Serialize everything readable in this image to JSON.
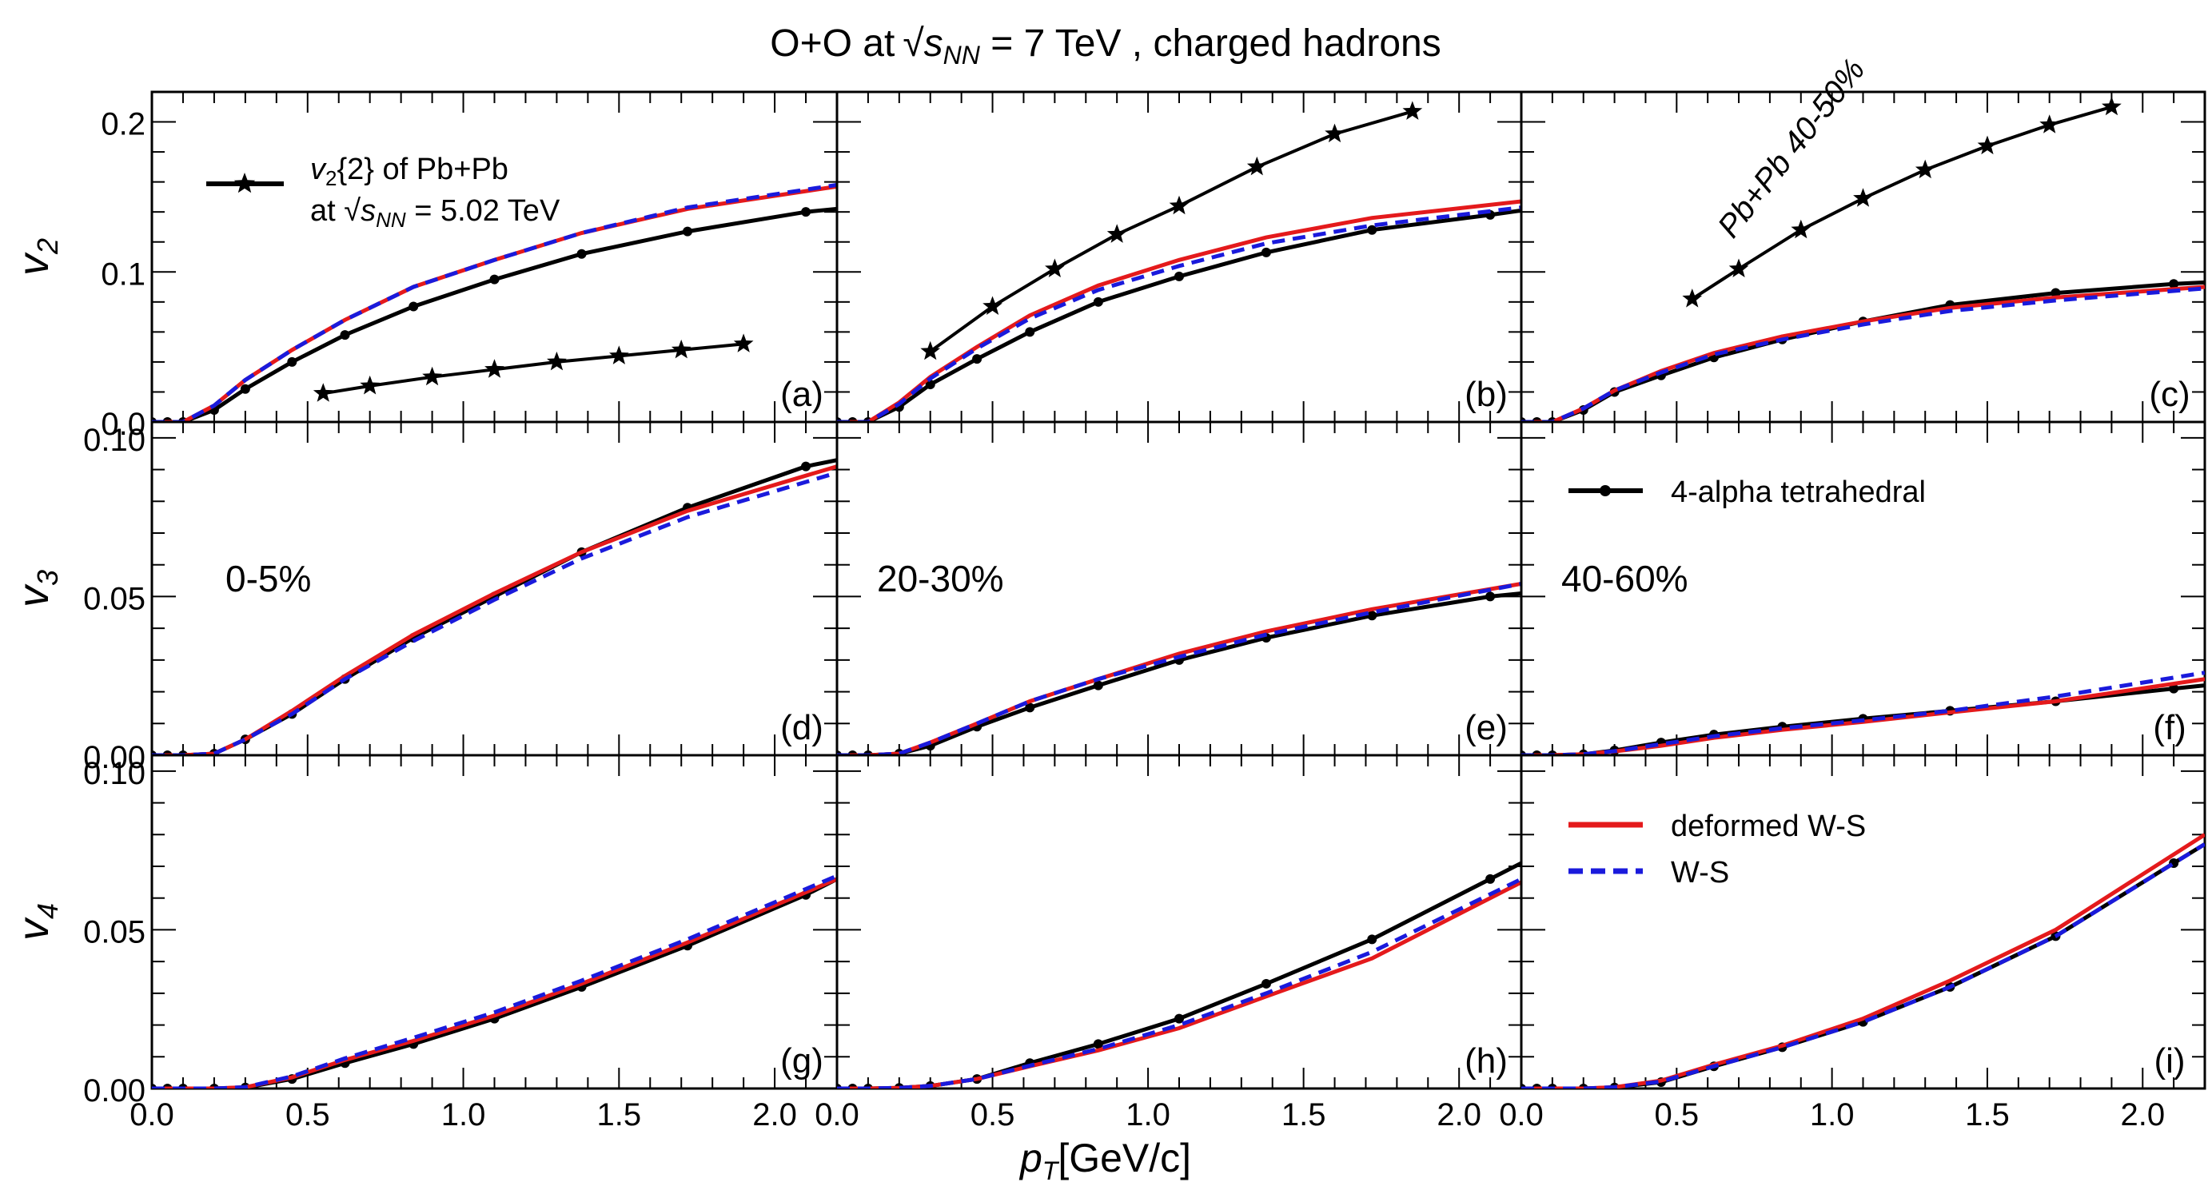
{
  "figure": {
    "title": "O+O at √s_NN = 7 TeV , charged hadrons",
    "title_parts": {
      "pre": "O+O at",
      "s": "s",
      "sub": "NN",
      "post": " = 7 TeV , charged hadrons"
    },
    "xlabel": {
      "p": "p",
      "sub": "T",
      "rest": "[GeV/c]"
    }
  },
  "legend": {
    "pbpb": {
      "v": "v",
      "sub": "2",
      "line1": "{2} of Pb+Pb",
      "at": "at",
      "s": "s",
      "ssub": "NN",
      "line2post": " = 5.02 TeV"
    },
    "tetra": "4-alpha tetrahedral",
    "deformed": "deformed W-S",
    "ws": "W-S"
  },
  "colors": {
    "tetra": "#000000",
    "deformed": "#e41a1c",
    "ws": "#1a1adc",
    "pbpb": "#000000"
  },
  "chart_data": [
    {
      "type": "line",
      "panel": "(a)",
      "row_label": "v2",
      "centrality": "0-5%",
      "xlim": [
        0,
        2.2
      ],
      "ylim": [
        0,
        0.22
      ],
      "yticks": [
        "0.0",
        "0.1",
        "0.2"
      ],
      "ytick_values": [
        0,
        0.1,
        0.2
      ],
      "xticks": [
        "0.0",
        "0.5",
        "1.0",
        "1.5",
        "2.0"
      ],
      "series": [
        {
          "name": "4-alpha tetrahedral",
          "x": [
            0,
            0.05,
            0.1,
            0.2,
            0.3,
            0.45,
            0.62,
            0.84,
            1.1,
            1.38,
            1.72,
            2.1,
            2.2
          ],
          "y": [
            0,
            0,
            0,
            0.008,
            0.022,
            0.04,
            0.058,
            0.077,
            0.095,
            0.112,
            0.127,
            0.14,
            0.142
          ]
        },
        {
          "name": "deformed W-S",
          "x": [
            0,
            0.1,
            0.2,
            0.3,
            0.45,
            0.62,
            0.84,
            1.1,
            1.38,
            1.72,
            2.2
          ],
          "y": [
            0,
            0,
            0.011,
            0.028,
            0.048,
            0.068,
            0.09,
            0.108,
            0.126,
            0.142,
            0.157
          ]
        },
        {
          "name": "W-S",
          "x": [
            0,
            0.1,
            0.2,
            0.3,
            0.45,
            0.62,
            0.84,
            1.1,
            1.38,
            1.72,
            2.2
          ],
          "y": [
            0,
            0,
            0.011,
            0.028,
            0.048,
            0.068,
            0.09,
            0.108,
            0.126,
            0.143,
            0.158
          ]
        },
        {
          "name": "v2{2} of Pb+Pb",
          "x": [
            0.55,
            0.7,
            0.9,
            1.1,
            1.3,
            1.5,
            1.7,
            1.9
          ],
          "y": [
            0.019,
            0.024,
            0.03,
            0.035,
            0.04,
            0.044,
            0.048,
            0.052
          ]
        }
      ]
    },
    {
      "type": "line",
      "panel": "(b)",
      "row_label": "v2",
      "centrality": "20-30%",
      "xlim": [
        0,
        2.2
      ],
      "ylim": [
        0,
        0.22
      ],
      "ytick_values": [
        0,
        0.1,
        0.2
      ],
      "xticks": [
        "0.0",
        "0.5",
        "1.0",
        "1.5",
        "2.0"
      ],
      "series": [
        {
          "name": "4-alpha tetrahedral",
          "x": [
            0,
            0.05,
            0.1,
            0.2,
            0.3,
            0.45,
            0.62,
            0.84,
            1.1,
            1.38,
            1.72,
            2.1,
            2.2
          ],
          "y": [
            0,
            0,
            0,
            0.01,
            0.025,
            0.042,
            0.06,
            0.08,
            0.097,
            0.113,
            0.128,
            0.138,
            0.141
          ]
        },
        {
          "name": "deformed W-S",
          "x": [
            0,
            0.1,
            0.2,
            0.3,
            0.45,
            0.62,
            0.84,
            1.1,
            1.38,
            1.72,
            2.2
          ],
          "y": [
            0,
            0,
            0.013,
            0.03,
            0.05,
            0.071,
            0.091,
            0.108,
            0.123,
            0.136,
            0.147
          ]
        },
        {
          "name": "W-S",
          "x": [
            0,
            0.1,
            0.2,
            0.3,
            0.45,
            0.62,
            0.84,
            1.1,
            1.38,
            1.72,
            2.2
          ],
          "y": [
            0,
            0,
            0.012,
            0.029,
            0.049,
            0.069,
            0.088,
            0.104,
            0.119,
            0.131,
            0.143
          ]
        },
        {
          "name": "v2{2} of Pb+Pb",
          "x": [
            0.3,
            0.5,
            0.7,
            0.9,
            1.1,
            1.35,
            1.6,
            1.85
          ],
          "y": [
            0.047,
            0.077,
            0.102,
            0.125,
            0.144,
            0.17,
            0.192,
            0.207
          ]
        }
      ]
    },
    {
      "type": "line",
      "panel": "(c)",
      "row_label": "v2",
      "centrality": "40-60%",
      "annotation": "Pb+Pb 40-50%",
      "xlim": [
        0,
        2.2
      ],
      "ylim": [
        0,
        0.22
      ],
      "ytick_values": [
        0,
        0.1,
        0.2
      ],
      "xticks": [
        "0.0",
        "0.5",
        "1.0",
        "1.5",
        "2.0"
      ],
      "series": [
        {
          "name": "4-alpha tetrahedral",
          "x": [
            0,
            0.05,
            0.1,
            0.2,
            0.3,
            0.45,
            0.62,
            0.84,
            1.1,
            1.38,
            1.72,
            2.1,
            2.2
          ],
          "y": [
            0,
            0,
            0,
            0.008,
            0.02,
            0.031,
            0.043,
            0.055,
            0.067,
            0.078,
            0.086,
            0.092,
            0.093
          ]
        },
        {
          "name": "deformed W-S",
          "x": [
            0,
            0.1,
            0.2,
            0.3,
            0.45,
            0.62,
            0.84,
            1.1,
            1.38,
            1.72,
            2.2
          ],
          "y": [
            0,
            0,
            0.009,
            0.021,
            0.034,
            0.046,
            0.057,
            0.067,
            0.076,
            0.083,
            0.09
          ]
        },
        {
          "name": "W-S",
          "x": [
            0,
            0.1,
            0.2,
            0.3,
            0.45,
            0.62,
            0.84,
            1.1,
            1.38,
            1.72,
            2.2
          ],
          "y": [
            0,
            0,
            0.009,
            0.021,
            0.033,
            0.045,
            0.055,
            0.065,
            0.074,
            0.081,
            0.089
          ]
        },
        {
          "name": "v2{2} of Pb+Pb",
          "x": [
            0.55,
            0.7,
            0.9,
            1.1,
            1.3,
            1.5,
            1.7,
            1.9
          ],
          "y": [
            0.082,
            0.102,
            0.128,
            0.149,
            0.168,
            0.184,
            0.198,
            0.21
          ]
        }
      ]
    },
    {
      "type": "line",
      "panel": "(d)",
      "row_label": "v3",
      "centrality": "0-5%",
      "xlim": [
        0,
        2.2
      ],
      "ylim": [
        0,
        0.105
      ],
      "yticks": [
        "0.00",
        "0.05",
        "0.10"
      ],
      "ytick_values": [
        0,
        0.05,
        0.1
      ],
      "xticks": [
        "0.0",
        "0.5",
        "1.0",
        "1.5",
        "2.0"
      ],
      "series": [
        {
          "name": "4-alpha tetrahedral",
          "x": [
            0,
            0.05,
            0.1,
            0.2,
            0.3,
            0.45,
            0.62,
            0.84,
            1.1,
            1.38,
            1.72,
            2.1,
            2.2
          ],
          "y": [
            0,
            0,
            0,
            0.0005,
            0.005,
            0.013,
            0.024,
            0.037,
            0.05,
            0.064,
            0.078,
            0.091,
            0.093
          ]
        },
        {
          "name": "deformed W-S",
          "x": [
            0,
            0.1,
            0.2,
            0.3,
            0.45,
            0.62,
            0.84,
            1.1,
            1.38,
            1.72,
            2.2
          ],
          "y": [
            0,
            0,
            0.0005,
            0.005,
            0.014,
            0.025,
            0.038,
            0.051,
            0.064,
            0.077,
            0.091
          ]
        },
        {
          "name": "W-S",
          "x": [
            0,
            0.1,
            0.2,
            0.3,
            0.45,
            0.62,
            0.84,
            1.1,
            1.38,
            1.72,
            2.2
          ],
          "y": [
            0,
            0,
            0.0005,
            0.005,
            0.013,
            0.024,
            0.036,
            0.049,
            0.062,
            0.075,
            0.089
          ]
        }
      ]
    },
    {
      "type": "line",
      "panel": "(e)",
      "row_label": "v3",
      "centrality": "20-30%",
      "xlim": [
        0,
        2.2
      ],
      "ylim": [
        0,
        0.105
      ],
      "ytick_values": [
        0,
        0.05,
        0.1
      ],
      "xticks": [
        "0.0",
        "0.5",
        "1.0",
        "1.5",
        "2.0"
      ],
      "series": [
        {
          "name": "4-alpha tetrahedral",
          "x": [
            0,
            0.05,
            0.1,
            0.2,
            0.3,
            0.45,
            0.62,
            0.84,
            1.1,
            1.38,
            1.72,
            2.1,
            2.2
          ],
          "y": [
            0,
            0,
            0,
            0.0005,
            0.003,
            0.009,
            0.015,
            0.022,
            0.03,
            0.037,
            0.044,
            0.05,
            0.051
          ]
        },
        {
          "name": "deformed W-S",
          "x": [
            0,
            0.1,
            0.2,
            0.3,
            0.45,
            0.62,
            0.84,
            1.1,
            1.38,
            1.72,
            2.2
          ],
          "y": [
            0,
            0,
            0.0005,
            0.004,
            0.01,
            0.017,
            0.024,
            0.032,
            0.039,
            0.046,
            0.054
          ]
        },
        {
          "name": "W-S",
          "x": [
            0,
            0.1,
            0.2,
            0.3,
            0.45,
            0.62,
            0.84,
            1.1,
            1.38,
            1.72,
            2.2
          ],
          "y": [
            0,
            0,
            0.0005,
            0.004,
            0.01,
            0.017,
            0.024,
            0.031,
            0.038,
            0.045,
            0.054
          ]
        }
      ]
    },
    {
      "type": "line",
      "panel": "(f)",
      "row_label": "v3",
      "centrality": "40-60%",
      "xlim": [
        0,
        2.2
      ],
      "ylim": [
        0,
        0.105
      ],
      "ytick_values": [
        0,
        0.05,
        0.1
      ],
      "xticks": [
        "0.0",
        "0.5",
        "1.0",
        "1.5",
        "2.0"
      ],
      "series": [
        {
          "name": "4-alpha tetrahedral",
          "x": [
            0,
            0.05,
            0.1,
            0.2,
            0.3,
            0.45,
            0.62,
            0.84,
            1.1,
            1.38,
            1.72,
            2.1,
            2.2
          ],
          "y": [
            0,
            0,
            0,
            0.0003,
            0.0015,
            0.004,
            0.0065,
            0.009,
            0.0115,
            0.014,
            0.017,
            0.021,
            0.022
          ]
        },
        {
          "name": "deformed W-S",
          "x": [
            0,
            0.1,
            0.2,
            0.3,
            0.45,
            0.62,
            0.84,
            1.1,
            1.38,
            1.72,
            2.2
          ],
          "y": [
            0,
            0,
            0.0003,
            0.0012,
            0.003,
            0.0055,
            0.008,
            0.0105,
            0.0135,
            0.017,
            0.024
          ]
        },
        {
          "name": "W-S",
          "x": [
            0,
            0.1,
            0.2,
            0.3,
            0.45,
            0.62,
            0.84,
            1.1,
            1.38,
            1.72,
            2.2
          ],
          "y": [
            0,
            0,
            0.0003,
            0.0013,
            0.0035,
            0.006,
            0.0085,
            0.011,
            0.014,
            0.0185,
            0.026
          ]
        }
      ]
    },
    {
      "type": "line",
      "panel": "(g)",
      "row_label": "v4",
      "centrality": "0-5%",
      "xlim": [
        0,
        2.2
      ],
      "ylim": [
        0,
        0.105
      ],
      "yticks": [
        "0.00",
        "0.05",
        "0.10"
      ],
      "ytick_values": [
        0,
        0.05,
        0.1
      ],
      "xticks": [
        "0.0",
        "0.5",
        "1.0",
        "1.5",
        "2.0"
      ],
      "series": [
        {
          "name": "4-alpha tetrahedral",
          "x": [
            0,
            0.05,
            0.1,
            0.2,
            0.3,
            0.45,
            0.62,
            0.84,
            1.1,
            1.38,
            1.72,
            2.1,
            2.2
          ],
          "y": [
            0,
            0,
            0,
            0,
            0.0003,
            0.003,
            0.008,
            0.014,
            0.022,
            0.032,
            0.045,
            0.061,
            0.066
          ]
        },
        {
          "name": "deformed W-S",
          "x": [
            0,
            0.1,
            0.2,
            0.3,
            0.45,
            0.62,
            0.84,
            1.1,
            1.38,
            1.72,
            2.2
          ],
          "y": [
            0,
            0,
            0,
            0.0004,
            0.0035,
            0.009,
            0.015,
            0.023,
            0.033,
            0.046,
            0.066
          ]
        },
        {
          "name": "W-S",
          "x": [
            0,
            0.1,
            0.2,
            0.3,
            0.45,
            0.62,
            0.84,
            1.1,
            1.38,
            1.72,
            2.2
          ],
          "y": [
            0,
            0,
            0,
            0.0004,
            0.0038,
            0.0095,
            0.016,
            0.024,
            0.034,
            0.047,
            0.067
          ]
        }
      ]
    },
    {
      "type": "line",
      "panel": "(h)",
      "row_label": "v4",
      "centrality": "20-30%",
      "xlim": [
        0,
        2.2
      ],
      "ylim": [
        0,
        0.105
      ],
      "ytick_values": [
        0,
        0.05,
        0.1
      ],
      "xticks": [
        "0.0",
        "0.5",
        "1.0",
        "1.5",
        "2.0"
      ],
      "series": [
        {
          "name": "4-alpha tetrahedral",
          "x": [
            0,
            0.05,
            0.1,
            0.2,
            0.3,
            0.45,
            0.62,
            0.84,
            1.1,
            1.38,
            1.72,
            2.1,
            2.2
          ],
          "y": [
            0,
            0,
            0,
            0.0002,
            0.0008,
            0.003,
            0.008,
            0.014,
            0.022,
            0.033,
            0.047,
            0.066,
            0.071
          ]
        },
        {
          "name": "deformed W-S",
          "x": [
            0,
            0.1,
            0.2,
            0.3,
            0.45,
            0.62,
            0.84,
            1.1,
            1.38,
            1.72,
            2.2
          ],
          "y": [
            0,
            0,
            0.0002,
            0.0008,
            0.003,
            0.007,
            0.012,
            0.019,
            0.029,
            0.041,
            0.065
          ]
        },
        {
          "name": "W-S",
          "x": [
            0,
            0.1,
            0.2,
            0.3,
            0.45,
            0.62,
            0.84,
            1.1,
            1.38,
            1.72,
            2.2
          ],
          "y": [
            0,
            0,
            0.0002,
            0.0008,
            0.003,
            0.0072,
            0.0125,
            0.02,
            0.03,
            0.043,
            0.066
          ]
        }
      ]
    },
    {
      "type": "line",
      "panel": "(i)",
      "row_label": "v4",
      "centrality": "40-60%",
      "xlim": [
        0,
        2.2
      ],
      "ylim": [
        0,
        0.105
      ],
      "ytick_values": [
        0,
        0.05,
        0.1
      ],
      "xticks": [
        "0.0",
        "0.5",
        "1.0",
        "1.5",
        "2.0"
      ],
      "series": [
        {
          "name": "4-alpha tetrahedral",
          "x": [
            0,
            0.05,
            0.1,
            0.2,
            0.3,
            0.45,
            0.62,
            0.84,
            1.1,
            1.38,
            1.72,
            2.1,
            2.2
          ],
          "y": [
            0,
            0,
            0,
            0,
            0.0003,
            0.002,
            0.007,
            0.013,
            0.021,
            0.032,
            0.048,
            0.071,
            0.077
          ]
        },
        {
          "name": "deformed W-S",
          "x": [
            0,
            0.1,
            0.2,
            0.3,
            0.45,
            0.62,
            0.84,
            1.1,
            1.38,
            1.72,
            2.2
          ],
          "y": [
            0,
            0,
            0,
            0.0004,
            0.0025,
            0.0075,
            0.0135,
            0.022,
            0.034,
            0.05,
            0.08
          ]
        },
        {
          "name": "W-S",
          "x": [
            0,
            0.1,
            0.2,
            0.3,
            0.45,
            0.62,
            0.84,
            1.1,
            1.38,
            1.72,
            2.2
          ],
          "y": [
            0,
            0,
            0,
            0.0004,
            0.0022,
            0.007,
            0.013,
            0.021,
            0.032,
            0.048,
            0.077
          ]
        }
      ]
    }
  ]
}
